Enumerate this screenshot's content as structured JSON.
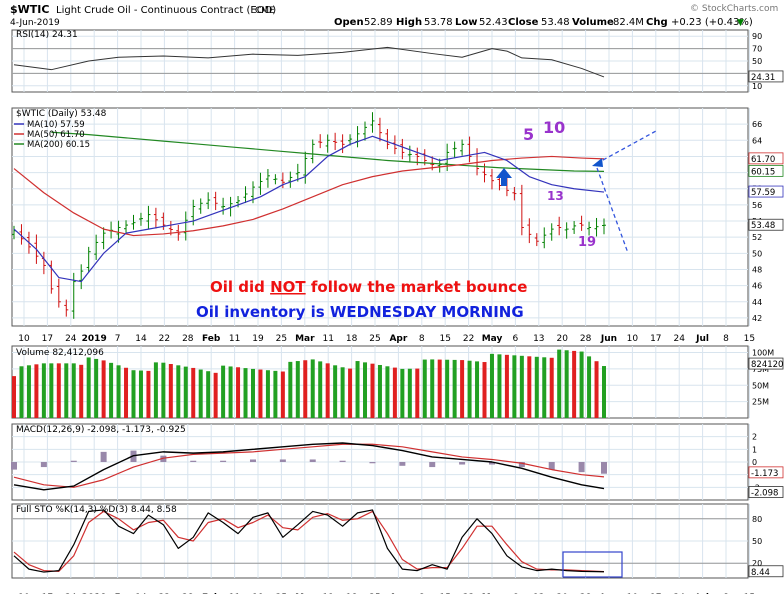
{
  "header": {
    "symbol": "$WTIC",
    "name": "Light Crude Oil - Continuous Contract (EOD)",
    "exchange": "CME",
    "date": "4-Jun-2019",
    "open_label": "Open",
    "open": "52.89",
    "high_label": "High",
    "high": "53.78",
    "low_label": "Low",
    "low": "52.43",
    "close_label": "Close",
    "close": "53.48",
    "volume_label": "Volume",
    "volume": "82.4M",
    "chg_label": "Chg",
    "chg": "+0.23 (+0.43%)",
    "watermark": "© StockCharts.com",
    "arrow_symbol": "▼"
  },
  "colors": {
    "up": "#008000",
    "down": "#d01010",
    "ma10": "#3333bb",
    "ma50": "#d03030",
    "ma200": "#228822",
    "rsi": "#333333",
    "volume_up": "#22a022",
    "volume_down": "#e02020",
    "macd": "#000000",
    "signal": "#d03030",
    "histogram": "#9988aa",
    "stoch_k": "#000000",
    "stoch_d": "#d03030",
    "annotation_red": "#ee1111",
    "annotation_blue": "#1122dd",
    "count_purple": "#9933cc",
    "marker_blue": "#1155cc"
  },
  "x_axis": {
    "labels": [
      "10",
      "17",
      "24",
      "2019",
      "7",
      "14",
      "22",
      "28",
      "Feb",
      "11",
      "19",
      "25",
      "Mar",
      "11",
      "18",
      "25",
      "Apr",
      "8",
      "15",
      "22",
      "May",
      "6",
      "13",
      "20",
      "28",
      "Jun",
      "10",
      "17",
      "24",
      "Jul",
      "8",
      "15"
    ],
    "bold_labels": [
      "2019",
      "Feb",
      "Mar",
      "Apr",
      "May",
      "Jun",
      "Jul"
    ]
  },
  "chart_data": [
    {
      "type": "line",
      "panel": "rsi",
      "title": "RSI(14) 24.31",
      "y_ticks": [
        10,
        30,
        50,
        70,
        90
      ],
      "ylim": [
        0,
        100
      ],
      "reference_lines": [
        30,
        70
      ],
      "current": "24.31",
      "series": [
        {
          "name": "RSI(14)",
          "x": [
            0,
            5,
            10,
            14,
            20,
            26,
            32,
            38,
            44,
            50,
            56,
            60,
            64,
            66,
            68,
            72,
            76,
            79
          ],
          "values": [
            44,
            36,
            50,
            56,
            58,
            55,
            61,
            59,
            64,
            72,
            62,
            56,
            70,
            66,
            55,
            52,
            38,
            24.31
          ]
        }
      ]
    },
    {
      "type": "candlestick",
      "panel": "price",
      "title": "$WTIC (Daily) 53.48",
      "legend": [
        "MA(10) 57.59",
        "MA(50) 61.70",
        "MA(200) 60.15"
      ],
      "y_ticks": [
        42,
        44,
        46,
        48,
        50,
        52,
        54,
        56,
        58,
        60,
        62,
        64,
        66
      ],
      "ylim": [
        41,
        68
      ],
      "right_labels": [
        "61.70",
        "60.15",
        "57.59",
        "53.48"
      ],
      "series": [
        {
          "name": "Daily close",
          "x": [
            0,
            2,
            4,
            5,
            6,
            7,
            8,
            9,
            10,
            12,
            14,
            16,
            18,
            20,
            22,
            24,
            26,
            28,
            30,
            32,
            34,
            36,
            38,
            40,
            42,
            44,
            46,
            48,
            50,
            52,
            54,
            55,
            56,
            57,
            58,
            60,
            62,
            64,
            66,
            67,
            68,
            70,
            72,
            73,
            74,
            75,
            76,
            77,
            78,
            79
          ],
          "values": [
            52.8,
            50.8,
            48.5,
            45.6,
            44.0,
            43.0,
            46.5,
            47.8,
            50.2,
            52.5,
            53.2,
            53.8,
            54.8,
            53.5,
            52.4,
            55.8,
            56.6,
            55.8,
            56.5,
            58.2,
            59.6,
            58.8,
            60.0,
            63.5,
            64.0,
            63.5,
            64.8,
            66.4,
            63.5,
            62.5,
            62.0,
            61.5,
            61.0,
            61.0,
            62.5,
            63.5,
            60.5,
            59.0,
            57.8,
            57.4,
            53.2,
            51.5,
            53.0,
            53.2,
            53.0,
            53.4,
            53.5,
            53.2,
            53.3,
            53.48
          ]
        },
        {
          "name": "MA(10)",
          "x": [
            0,
            3,
            6,
            9,
            12,
            15,
            18,
            21,
            24,
            27,
            30,
            33,
            36,
            39,
            42,
            45,
            48,
            51,
            54,
            57,
            60,
            63,
            66,
            69,
            72,
            75,
            79
          ],
          "values": [
            53.0,
            50.5,
            47.0,
            46.5,
            50.0,
            52.5,
            53.0,
            53.5,
            54.0,
            55.0,
            56.0,
            57.0,
            58.5,
            59.5,
            62.0,
            63.5,
            64.5,
            63.5,
            62.5,
            61.5,
            62.0,
            62.5,
            61.5,
            59.5,
            58.5,
            58.0,
            57.59
          ]
        },
        {
          "name": "MA(50)",
          "x": [
            0,
            4,
            8,
            12,
            16,
            20,
            24,
            28,
            32,
            36,
            40,
            44,
            48,
            52,
            56,
            60,
            64,
            68,
            72,
            76,
            79
          ],
          "values": [
            60.5,
            57.5,
            55.0,
            53.0,
            52.2,
            52.4,
            52.8,
            53.4,
            54.2,
            55.5,
            57.0,
            58.5,
            59.5,
            60.2,
            60.6,
            61.0,
            61.5,
            61.8,
            62.0,
            61.8,
            61.7
          ]
        },
        {
          "name": "MA(200)",
          "x": [
            5,
            10,
            15,
            20,
            25,
            30,
            35,
            40,
            45,
            50,
            55,
            60,
            65,
            70,
            75,
            79
          ],
          "values": [
            65.0,
            64.7,
            64.3,
            63.9,
            63.5,
            63.1,
            62.7,
            62.3,
            61.9,
            61.5,
            61.2,
            60.9,
            60.6,
            60.4,
            60.2,
            60.15
          ]
        }
      ]
    },
    {
      "type": "bar",
      "panel": "volume",
      "title": "Volume 82,412,096",
      "y_ticks": [
        "25M",
        "50M",
        "75M",
        "100M"
      ],
      "ylim": [
        0,
        110
      ],
      "right_label": "82412096",
      "series": [
        {
          "name": "Volume (M)",
          "x": [
            0,
            4,
            8,
            12,
            16,
            20,
            24,
            28,
            32,
            36,
            40,
            44,
            48,
            52,
            56,
            60,
            64,
            68,
            72,
            76,
            79
          ],
          "values": [
            70,
            82,
            88,
            85,
            76,
            80,
            78,
            74,
            75,
            77,
            88,
            82,
            80,
            78,
            85,
            90,
            92,
            95,
            98,
            100,
            82.4
          ]
        }
      ]
    },
    {
      "type": "line",
      "panel": "macd",
      "title": "MACD(12,26,9) -2.098, -1.173, -0.925",
      "y_ticks": [
        -2,
        -1,
        0,
        1,
        2
      ],
      "ylim": [
        -3,
        3
      ],
      "right_labels": [
        "-1.173",
        "-2.098"
      ],
      "series": [
        {
          "name": "MACD",
          "x": [
            0,
            4,
            8,
            12,
            16,
            20,
            24,
            28,
            32,
            36,
            40,
            44,
            48,
            52,
            56,
            60,
            64,
            68,
            72,
            76,
            79
          ],
          "values": [
            -1.8,
            -2.2,
            -1.9,
            -0.6,
            0.5,
            0.8,
            0.7,
            0.8,
            1.0,
            1.2,
            1.4,
            1.5,
            1.3,
            0.9,
            0.4,
            0.2,
            0.0,
            -0.5,
            -1.2,
            -1.8,
            -2.098
          ]
        },
        {
          "name": "Signal",
          "x": [
            0,
            4,
            8,
            12,
            16,
            20,
            24,
            28,
            32,
            36,
            40,
            44,
            48,
            52,
            56,
            60,
            64,
            68,
            72,
            76,
            79
          ],
          "values": [
            -1.2,
            -1.8,
            -2.0,
            -1.4,
            -0.4,
            0.3,
            0.6,
            0.7,
            0.8,
            1.0,
            1.2,
            1.4,
            1.4,
            1.2,
            0.8,
            0.4,
            0.2,
            -0.1,
            -0.6,
            -1.0,
            -1.173
          ]
        }
      ]
    },
    {
      "type": "line",
      "panel": "stochastic",
      "title": "Full STO %K(14,3) %D(3) 8.44, 8.58",
      "y_ticks": [
        20,
        50,
        80
      ],
      "ylim": [
        0,
        100
      ],
      "reference_lines": [
        20,
        80
      ],
      "right_label": "8.44",
      "series": [
        {
          "name": "%K",
          "x": [
            0,
            2,
            4,
            6,
            8,
            10,
            12,
            14,
            16,
            18,
            20,
            22,
            24,
            26,
            28,
            30,
            32,
            34,
            36,
            38,
            40,
            42,
            44,
            46,
            48,
            50,
            52,
            54,
            56,
            58,
            60,
            62,
            64,
            66,
            68,
            70,
            72,
            74,
            76,
            79
          ],
          "values": [
            30,
            12,
            8,
            10,
            45,
            90,
            92,
            70,
            60,
            85,
            72,
            40,
            55,
            88,
            75,
            60,
            82,
            88,
            55,
            72,
            90,
            85,
            70,
            88,
            92,
            40,
            12,
            10,
            18,
            12,
            55,
            80,
            60,
            30,
            15,
            10,
            12,
            10,
            9,
            8.44
          ]
        },
        {
          "name": "%D",
          "x": [
            0,
            2,
            4,
            6,
            8,
            10,
            12,
            14,
            16,
            18,
            20,
            22,
            24,
            26,
            28,
            30,
            32,
            34,
            36,
            38,
            40,
            42,
            44,
            46,
            48,
            50,
            52,
            54,
            56,
            58,
            60,
            62,
            64,
            66,
            68,
            70,
            72,
            74,
            76,
            79
          ],
          "values": [
            35,
            18,
            10,
            9,
            30,
            75,
            90,
            80,
            65,
            75,
            78,
            55,
            50,
            75,
            80,
            68,
            75,
            85,
            68,
            65,
            82,
            87,
            78,
            80,
            90,
            60,
            25,
            12,
            14,
            14,
            40,
            70,
            70,
            45,
            22,
            12,
            11,
            11,
            10,
            8.58
          ]
        }
      ]
    }
  ],
  "annotations": {
    "headline_1_prefix": "Oil did ",
    "headline_1_emphasis": "NOT",
    "headline_1_suffix": " follow the market bounce",
    "headline_2": "Oil inventory is WEDNESDAY MORNING",
    "count_5": "5",
    "count_10": "10",
    "count_13": "13",
    "count_19": "19"
  }
}
